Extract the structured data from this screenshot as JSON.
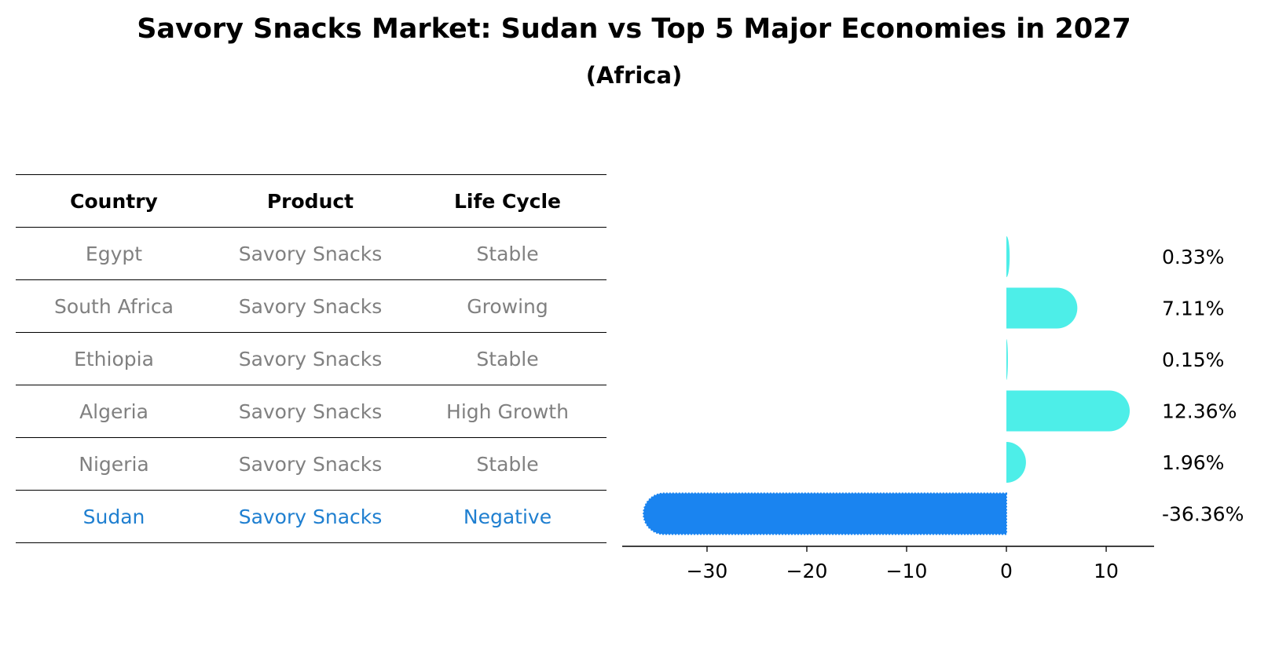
{
  "title": "Savory Snacks Market: Sudan vs Top 5 Major Economies in 2027",
  "subtitle": "(Africa)",
  "table": {
    "headers": [
      "Country",
      "Product",
      "Life Cycle"
    ],
    "rows": [
      {
        "country": "Egypt",
        "product": "Savory Snacks",
        "life_cycle": "Stable",
        "highlight": false
      },
      {
        "country": "South Africa",
        "product": "Savory Snacks",
        "life_cycle": "Growing",
        "highlight": false
      },
      {
        "country": "Ethiopia",
        "product": "Savory Snacks",
        "life_cycle": "Stable",
        "highlight": false
      },
      {
        "country": "Algeria",
        "product": "Savory Snacks",
        "life_cycle": "High Growth",
        "highlight": false
      },
      {
        "country": "Nigeria",
        "product": "Savory Snacks",
        "life_cycle": "Stable",
        "highlight": false
      },
      {
        "country": "Sudan",
        "product": "Savory Snacks",
        "life_cycle": "Negative",
        "highlight": true
      }
    ]
  },
  "colors": {
    "bar": "#4deee8",
    "highlight_bar": "#1a84f0",
    "highlight_text": "#1f7fd0",
    "muted_text": "#808080",
    "axis": "#000000"
  },
  "chart_data": {
    "type": "bar",
    "orientation": "horizontal",
    "categories": [
      "Egypt",
      "South Africa",
      "Ethiopia",
      "Algeria",
      "Nigeria",
      "Sudan"
    ],
    "values": [
      0.33,
      7.11,
      0.15,
      12.36,
      1.96,
      -36.36
    ],
    "data_labels": [
      "0.33%",
      "7.11%",
      "0.15%",
      "12.36%",
      "1.96%",
      "-36.36%"
    ],
    "highlight": "Sudan",
    "xlim": [
      -38.5,
      14.8
    ],
    "xticks": [
      -30,
      -20,
      -10,
      0,
      10
    ],
    "xtick_labels": [
      "−30",
      "−20",
      "−10",
      "0",
      "10"
    ],
    "xlabel": "",
    "ylabel": "",
    "grid": false,
    "legend": false
  }
}
